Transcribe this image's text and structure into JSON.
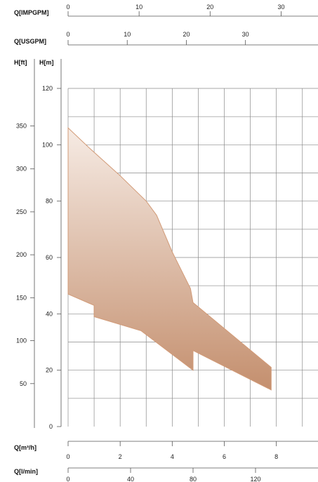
{
  "chart_data": {
    "type": "area",
    "title": "",
    "xlabel": "Q[m³/h]",
    "ylabel": "H[m]",
    "xlim": [
      0,
      9.6
    ],
    "ylim": [
      0,
      120
    ],
    "x_ticks": [
      0,
      2,
      4,
      6,
      8
    ],
    "y_ticks": [
      0,
      20,
      40,
      60,
      80,
      100,
      120
    ],
    "grid": true,
    "secondary_axes": {
      "impgpm": {
        "label": "Q[IMPGPM]",
        "ticks": [
          0,
          10,
          20,
          30
        ]
      },
      "usgpm": {
        "label": "Q[USGPM]",
        "ticks": [
          0,
          10,
          20,
          30
        ]
      },
      "lmin": {
        "label": "Q[l/min]",
        "ticks": [
          0,
          40,
          80,
          120
        ]
      },
      "hft": {
        "label": "H[ft]",
        "ticks": [
          50,
          100,
          150,
          200,
          250,
          300,
          350
        ]
      }
    },
    "series": [
      {
        "values": [
          {
            "x": 0,
            "y": 106
          },
          {
            "x": 0.8,
            "y": 99
          },
          {
            "x": 2,
            "y": 89
          },
          {
            "x": 3,
            "y": 80
          },
          {
            "x": 3.4,
            "y": 75
          },
          {
            "x": 4,
            "y": 62
          },
          {
            "x": 4.7,
            "y": 49
          },
          {
            "x": 4.8,
            "y": 44
          },
          {
            "x": 7.8,
            "y": 21
          },
          {
            "x": 7.8,
            "y": 13
          },
          {
            "x": 4.8,
            "y": 27
          },
          {
            "x": 4.8,
            "y": 20
          },
          {
            "x": 2.8,
            "y": 34
          },
          {
            "x": 1,
            "y": 39
          },
          {
            "x": 1,
            "y": 43
          },
          {
            "x": 0,
            "y": 47
          }
        ]
      }
    ],
    "colors": {
      "area_top": "#f6ebe4",
      "area_bottom": "#c48f6e",
      "outline": "#d29b78"
    }
  }
}
